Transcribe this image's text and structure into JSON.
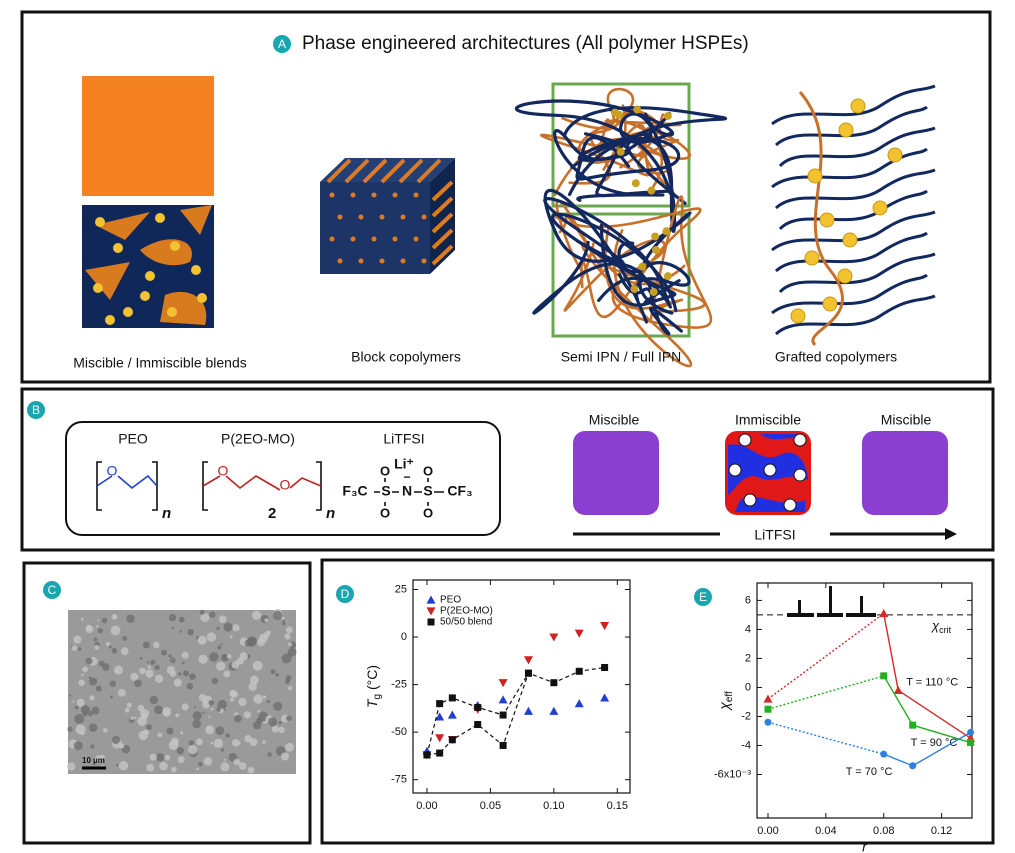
{
  "panel_a": {
    "label": "A",
    "title": "Phase engineered architectures (All polymer HSPEs)",
    "captions": [
      "Miscible / Immiscible blends",
      "Block copolymers",
      "Semi IPN / Full IPN",
      "Grafted copolymers"
    ]
  },
  "panel_b": {
    "label": "B",
    "polymers": [
      "PEO",
      "P(2EO-MO)",
      "LiTFSI"
    ],
    "chem": {
      "o": "O",
      "n": "n",
      "two": "2",
      "li": "Li⁺",
      "f3c": "F₃C",
      "s": "S",
      "nitrogen": "N",
      "cf3": "CF₃",
      "minus": "−"
    },
    "phases": [
      "Miscible",
      "Immiscible",
      "Miscible"
    ],
    "arrow_label": "LiTFSI"
  },
  "panel_c": {
    "label": "C",
    "scale_bar": "10 µm"
  },
  "chart_data": [
    {
      "type": "scatter",
      "panel_label": "D",
      "y_label": {
        "symbol": "T",
        "sub": "g",
        "unit": " (°C)"
      },
      "xlim": [
        -0.011,
        0.16
      ],
      "ylim": [
        -82,
        30
      ],
      "xticks": [
        {
          "value": 0,
          "label": "0.00"
        },
        {
          "value": 0.05,
          "label": "0.05"
        },
        {
          "value": 0.1,
          "label": "0.10"
        },
        {
          "value": 0.15,
          "label": "0.15"
        }
      ],
      "yticks": [
        -75,
        -50,
        -25,
        0,
        25
      ],
      "legend": "upper left",
      "series": [
        {
          "name": "PEO",
          "color": "#1f3fd0",
          "marker": "triangle-up",
          "line": "none",
          "x": [
            0,
            0.01,
            0.02,
            0.04,
            0.06,
            0.08,
            0.1,
            0.12,
            0.14
          ],
          "values": [
            -60,
            -42,
            -41,
            -36,
            -33,
            -39,
            -39,
            -35,
            -32
          ]
        },
        {
          "name": "P(2EO-MO)",
          "color": "#d02020",
          "marker": "triangle-down",
          "line": "none",
          "x": [
            0,
            0.01,
            0.02,
            0.04,
            0.06,
            0.08,
            0.1,
            0.12,
            0.14
          ],
          "values": [
            -62,
            -53,
            -54,
            -38,
            -24,
            -12,
            0,
            2,
            6
          ]
        },
        {
          "name": "50/50 blend",
          "color": "#111111",
          "marker": "square",
          "line": "dashed",
          "x": [
            0,
            0.01,
            0.02,
            0.04,
            0.06,
            0.08,
            0.1,
            0.12,
            0.14,
            null,
            0,
            0.01,
            0.02,
            0.04,
            0.06,
            0.08
          ],
          "values": [
            -62,
            -61,
            -54,
            -46,
            -57,
            -19,
            -24,
            -18,
            -16,
            null,
            -62,
            -35,
            -32,
            -37,
            -41,
            -19
          ]
        }
      ]
    },
    {
      "type": "line",
      "panel_label": "E",
      "x_label": "r",
      "y_label": {
        "symbol": "χ",
        "sub": "eff"
      },
      "xlim": [
        -0.0076,
        0.141
      ],
      "ylim": [
        -9,
        7.2
      ],
      "xticks": [
        {
          "value": 0,
          "label": "0.00"
        },
        {
          "value": 0.04,
          "label": "0.04"
        },
        {
          "value": 0.08,
          "label": "0.08"
        },
        {
          "value": 0.12,
          "label": "0.12"
        }
      ],
      "yticks": [
        6,
        4,
        2,
        0,
        -2,
        -4,
        {
          "value": -6,
          "label": "-6x10⁻³"
        }
      ],
      "reference_line": {
        "value": 5,
        "symbol": "χ",
        "sub": "crit"
      },
      "series": [
        {
          "name": "T = 110 °C",
          "color": "#d42a2a",
          "marker": "triangle-up",
          "x": [
            0,
            0.08,
            0.09,
            0.14
          ],
          "values": [
            -0.8,
            5.1,
            -0.2,
            -3.5
          ]
        },
        {
          "name": "T = 90 °C",
          "color": "#22b022",
          "marker": "square",
          "x": [
            0,
            0.08,
            0.1,
            0.14
          ],
          "values": [
            -1.5,
            0.8,
            -2.6,
            -3.8
          ]
        },
        {
          "name": "T = 70 °C",
          "color": "#2f7fe0",
          "marker": "circle",
          "x": [
            0,
            0.08,
            0.1,
            0.14
          ],
          "values": [
            -2.4,
            -4.6,
            -5.4,
            -3.1
          ]
        }
      ]
    }
  ]
}
